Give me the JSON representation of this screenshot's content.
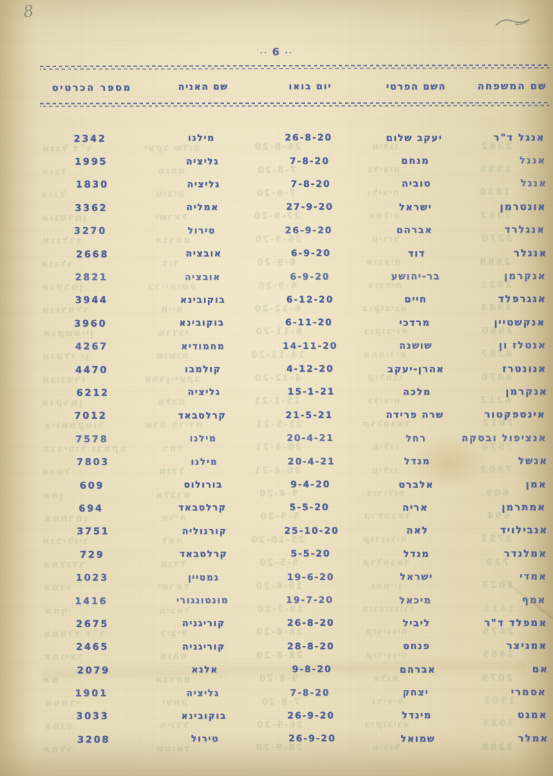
{
  "annotations": {
    "handwritten_number": "8"
  },
  "page_header": {
    "page_number": "6",
    "left_dots": "..",
    "right_dots": ".."
  },
  "colors": {
    "paper": "#ece1c0",
    "ink": "#50629b",
    "pencil": "#83806f",
    "bleed_through": "#6d8a70"
  },
  "table": {
    "headers": {
      "family": "שם המשפחה",
      "first_name": "השם הפרטי",
      "arrival_day": "יום בואו",
      "ship": "שם האניה",
      "card_number": "מספר הכרטיס"
    },
    "rows": [
      {
        "family": "אנגל ד\"ר",
        "first": "יעקב שלום",
        "date": "26-8-20",
        "ship": "מילנו",
        "card": "2342"
      },
      {
        "family": "אנגל",
        "first": "מנחם",
        "date": "7-8-20",
        "ship": "גליציה",
        "card": "1995"
      },
      {
        "family": "אנגל",
        "first": "טוביה",
        "date": "7-8-20",
        "ship": "גליציה",
        "card": "1830"
      },
      {
        "family": "אונטרמן",
        "first": "ישראל",
        "date": "27-9-20",
        "ship": "אמליה",
        "card": "3362"
      },
      {
        "family": "אנגלרד",
        "first": "אברהם",
        "date": "26-9-20",
        "ship": "טירול",
        "card": "3270"
      },
      {
        "family": "אנגלר",
        "first": "דוד",
        "date": "6-9-20",
        "ship": "אובציה",
        "card": "2668"
      },
      {
        "family": "אנקרמן",
        "first": "בר-יהושע",
        "date": "6-9-20",
        "ship": "אובציה",
        "card": "2821"
      },
      {
        "family": "אנגרפלד",
        "first": "חיים",
        "date": "6-12-20",
        "ship": "בוקובינא",
        "card": "3944"
      },
      {
        "family": "אנקשטיין",
        "first": "מרדכי",
        "date": "6-11-20",
        "ship": "בוקובינא",
        "card": "3960"
      },
      {
        "family": "אנטלז ון",
        "first": "שושנה",
        "date": "14-11-20",
        "ship": "מחמודיא",
        "card": "4267"
      },
      {
        "family": "אנונטרז",
        "first": "אהרן-יעקב",
        "date": "4-12-20",
        "ship": "קולמבו",
        "card": "4470"
      },
      {
        "family": "אנקרמן",
        "first": "מלכה",
        "date": "15-1-21",
        "ship": "גליציה",
        "card": "6212"
      },
      {
        "family": "אינספקטור",
        "first": "שרה פרידה",
        "date": "21-5-21",
        "ship": "קרלסבאד",
        "card": "7012"
      },
      {
        "family": "אנציפול ובסקה",
        "first": "רחל",
        "date": "20-4-21",
        "ship": "מילנו",
        "card": "7578"
      },
      {
        "family": "אנשל",
        "first": "מנדל",
        "date": "20-4-21",
        "ship": "מילנו",
        "card": "7803"
      },
      {
        "family": "אמן",
        "first": "אלברט",
        "date": "9-4-20",
        "ship": "בורולוס",
        "card": "609"
      },
      {
        "family": "אמתרמן",
        "first": "אריה",
        "date": "5-5-20",
        "ship": "קרלסבאד",
        "card": "694"
      },
      {
        "family": "אנבילויד",
        "first": "לאה",
        "date": "25-10-20",
        "ship": "קורנוליה",
        "card": "3751"
      },
      {
        "family": "אמלנדר",
        "first": "מנדל",
        "date": "5-5-20",
        "ship": "קרלסבאד",
        "card": "729"
      },
      {
        "family": "אמדי",
        "first": "ישראל",
        "date": "19-6-20",
        "ship": "גמטיין",
        "card": "1023"
      },
      {
        "family": "אמף",
        "first": "מיכאל",
        "date": "19-7-20",
        "ship": "מונטונגורי",
        "card": "1416"
      },
      {
        "family": "אמפלד ד\"ר",
        "first": "ליביל",
        "date": "26-8-20",
        "ship": "קוריגניה",
        "card": "2675"
      },
      {
        "family": "אמניצר",
        "first": "פנחס",
        "date": "28-8-20",
        "ship": "קוריגניה",
        "card": "2465"
      },
      {
        "family": "אם",
        "first": "אברהם",
        "date": "9-8-20",
        "ship": "אלנא",
        "card": "2079"
      },
      {
        "family": "אסמרי",
        "first": "יצחק",
        "date": "7-8-20",
        "ship": "גליציה",
        "card": "1901"
      },
      {
        "family": "אמנט",
        "first": "מינדל",
        "date": "26-9-20",
        "ship": "בוקובינא",
        "card": "3033"
      },
      {
        "family": "אמלר",
        "first": "שמואל",
        "date": "26-9-20",
        "ship": "טירול",
        "card": "3208"
      }
    ]
  }
}
